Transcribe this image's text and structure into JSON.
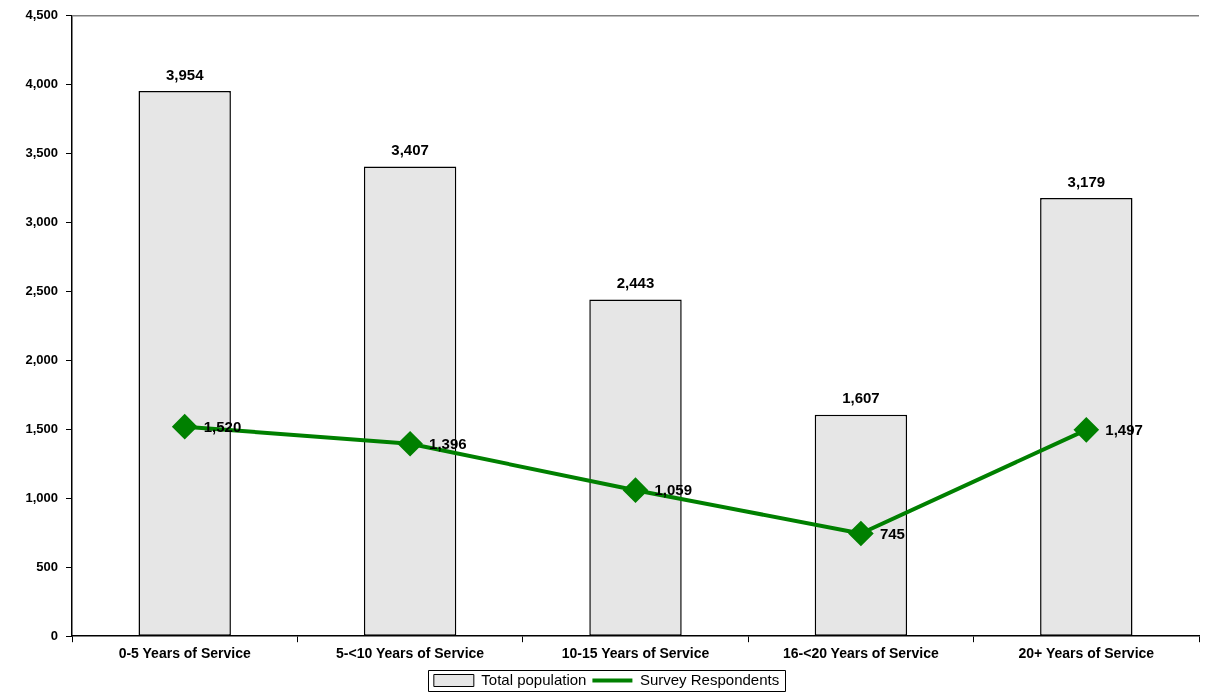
{
  "chart_data": {
    "type": "bar",
    "categories": [
      "0-5 Years of Service",
      "5-<10 Years of Service",
      "10-15 Years of Service",
      "16-<20 Years of Service",
      "20+ Years of Service"
    ],
    "series": [
      {
        "name": "Total population",
        "color": "#e6e6e6",
        "values": [
          3954,
          3407,
          2443,
          1607,
          3179
        ],
        "value_labels": [
          "3,954",
          "3,407",
          "2,443",
          "1,607",
          "3,179"
        ]
      },
      {
        "name": "Survey Respondents",
        "type": "line",
        "color": "#008000",
        "marker": "diamond",
        "values": [
          1520,
          1396,
          1059,
          745,
          1497
        ],
        "value_labels": [
          "1,520",
          "1,396",
          "1,059",
          "745",
          "1,497"
        ]
      }
    ],
    "ylim": [
      0,
      4500
    ],
    "yticks": [
      0,
      500,
      {
        "value": 1000,
        "label": "1,000"
      },
      {
        "value": 1500,
        "label": "1,500"
      },
      {
        "value": 2000,
        "label": "2,000"
      },
      {
        "value": 2500,
        "label": "2,500"
      },
      {
        "value": 3000,
        "label": "3,000"
      },
      {
        "value": 3500,
        "label": "3,500"
      },
      {
        "value": 4000,
        "label": "4,000"
      },
      {
        "value": 4500,
        "label": "4,500"
      }
    ],
    "grid": false,
    "legend": "bottom"
  }
}
